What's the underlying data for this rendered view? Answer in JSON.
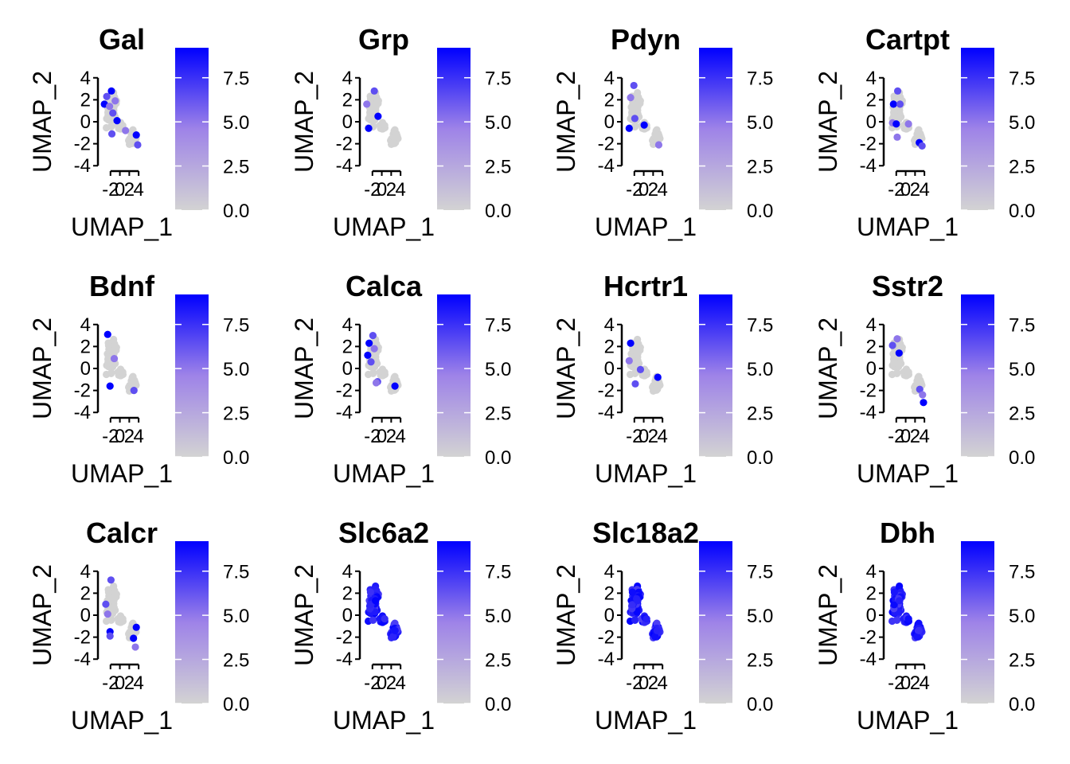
{
  "figure": {
    "xlabel": "UMAP_1",
    "ylabel": "UMAP_2",
    "x_ticks": [
      "-2",
      "0",
      "2",
      "4"
    ],
    "y_ticks": [
      "4",
      "2",
      "0",
      "-2",
      "-4"
    ],
    "colorbar_ticks": [
      "7.5",
      "5.0",
      "2.5",
      "0.0"
    ]
  },
  "chart_data": [
    {
      "type": "scatter",
      "title": "Gal",
      "xlabel": "UMAP_1",
      "ylabel": "UMAP_2",
      "xlim": [
        -4,
        5.5
      ],
      "ylim": [
        -4.2,
        4.2
      ],
      "color_scale": {
        "low": "#d3d3d3",
        "high": "#0000ff",
        "range": [
          0,
          9.2
        ]
      },
      "highlight": [
        [
          -3.3,
          1.6
        ],
        [
          -2.8,
          2.3
        ],
        [
          -2.2,
          1.4
        ],
        [
          -1.8,
          2.8
        ],
        [
          -1.5,
          0.8
        ],
        [
          -1.0,
          1.9
        ],
        [
          -0.6,
          0.1
        ],
        [
          -1.7,
          -1.1
        ],
        [
          1.2,
          -0.8
        ],
        [
          3.5,
          -1.2
        ],
        [
          3.8,
          -2.1
        ]
      ]
    },
    {
      "type": "scatter",
      "title": "Grp",
      "xlabel": "UMAP_1",
      "ylabel": "UMAP_2",
      "xlim": [
        -4,
        5.5
      ],
      "ylim": [
        -4.2,
        4.2
      ],
      "color_scale": {
        "low": "#d3d3d3",
        "high": "#0000ff",
        "range": [
          0,
          9.2
        ]
      },
      "highlight": [
        [
          -2.8,
          -0.6
        ],
        [
          -1.6,
          2.8
        ],
        [
          -3.2,
          1.6
        ],
        [
          -0.8,
          0.5
        ]
      ]
    },
    {
      "type": "scatter",
      "title": "Pdyn",
      "xlabel": "UMAP_1",
      "ylabel": "UMAP_2",
      "xlim": [
        -4,
        5.5
      ],
      "ylim": [
        -4.2,
        4.2
      ],
      "color_scale": {
        "low": "#d3d3d3",
        "high": "#0000ff",
        "range": [
          0,
          9.2
        ]
      },
      "highlight": [
        [
          -3.1,
          -0.6
        ],
        [
          -2.1,
          3.3
        ],
        [
          -2.8,
          2.2
        ],
        [
          0.1,
          -0.3
        ],
        [
          -1.9,
          0.3
        ],
        [
          3.2,
          -2.1
        ]
      ]
    },
    {
      "type": "scatter",
      "title": "Cartpt",
      "xlabel": "UMAP_1",
      "ylabel": "UMAP_2",
      "xlim": [
        -4,
        5.5
      ],
      "ylim": [
        -4.2,
        4.2
      ],
      "color_scale": {
        "low": "#d3d3d3",
        "high": "#0000ff",
        "range": [
          0,
          9.2
        ]
      },
      "highlight": [
        [
          -2.6,
          1.6
        ],
        [
          -1.7,
          2.8
        ],
        [
          -2.8,
          -0.1
        ],
        [
          -2.0,
          -0.2
        ],
        [
          -1.2,
          1.6
        ],
        [
          -1.8,
          -1.4
        ],
        [
          2.9,
          -1.9
        ],
        [
          3.5,
          -2.2
        ],
        [
          0.6,
          -0.2
        ]
      ]
    },
    {
      "type": "scatter",
      "title": "Bdnf",
      "xlabel": "UMAP_1",
      "ylabel": "UMAP_2",
      "xlim": [
        -4,
        5.5
      ],
      "ylim": [
        -4.2,
        4.2
      ],
      "color_scale": {
        "low": "#d3d3d3",
        "high": "#0000ff",
        "range": [
          0,
          9.2
        ]
      },
      "highlight": [
        [
          -2.1,
          -1.6
        ],
        [
          3.0,
          -2.0
        ],
        [
          -1.2,
          0.9
        ],
        [
          -2.6,
          3.1
        ]
      ]
    },
    {
      "type": "scatter",
      "title": "Calca",
      "xlabel": "UMAP_1",
      "ylabel": "UMAP_2",
      "xlim": [
        -4,
        5.5
      ],
      "ylim": [
        -4.2,
        4.2
      ],
      "color_scale": {
        "low": "#d3d3d3",
        "high": "#0000ff",
        "range": [
          0,
          9.2
        ]
      },
      "highlight": [
        [
          -3.0,
          1.2
        ],
        [
          -2.3,
          0.6
        ],
        [
          -1.6,
          1.8
        ],
        [
          -2.7,
          2.3
        ],
        [
          -0.9,
          -1.2
        ],
        [
          -1.2,
          -1.3
        ],
        [
          2.8,
          -1.6
        ],
        [
          -1.9,
          3.0
        ]
      ]
    },
    {
      "type": "scatter",
      "title": "Hcrtr1",
      "xlabel": "UMAP_1",
      "ylabel": "UMAP_2",
      "xlim": [
        -4,
        5.5
      ],
      "ylim": [
        -4.2,
        4.2
      ],
      "color_scale": {
        "low": "#d3d3d3",
        "high": "#0000ff",
        "range": [
          0,
          9.2
        ]
      },
      "highlight": [
        [
          -2.8,
          2.3
        ],
        [
          -0.7,
          -0.1
        ],
        [
          -3.1,
          0.7
        ],
        [
          3.0,
          -0.8
        ],
        [
          -1.8,
          -1.4
        ]
      ]
    },
    {
      "type": "scatter",
      "title": "Sstr2",
      "xlabel": "UMAP_1",
      "ylabel": "UMAP_2",
      "xlim": [
        -4,
        5.5
      ],
      "ylim": [
        -4.2,
        4.2
      ],
      "color_scale": {
        "low": "#d3d3d3",
        "high": "#0000ff",
        "range": [
          0,
          9.2
        ]
      },
      "highlight": [
        [
          3.8,
          -3.1
        ],
        [
          -2.8,
          2.1
        ],
        [
          -1.8,
          2.7
        ],
        [
          -1.4,
          1.4
        ],
        [
          3.0,
          -1.9
        ],
        [
          3.6,
          -2.4
        ]
      ]
    },
    {
      "type": "scatter",
      "title": "Calcr",
      "xlabel": "UMAP_1",
      "ylabel": "UMAP_2",
      "xlim": [
        -4,
        5.5
      ],
      "ylim": [
        -4.2,
        4.2
      ],
      "color_scale": {
        "low": "#d3d3d3",
        "high": "#0000ff",
        "range": [
          0,
          9.2
        ]
      },
      "highlight": [
        [
          -2.1,
          -1.5
        ],
        [
          -2.1,
          -1.9
        ],
        [
          3.3,
          -2.9
        ],
        [
          3.5,
          -1.1
        ],
        [
          -3.0,
          1.0
        ],
        [
          -2.6,
          0.1
        ],
        [
          2.9,
          -2.1
        ],
        [
          -1.9,
          3.2
        ]
      ]
    },
    {
      "type": "scatter",
      "title": "Slc6a2",
      "xlabel": "UMAP_1",
      "ylabel": "UMAP_2",
      "xlim": [
        -4,
        5.5
      ],
      "ylim": [
        -4.2,
        4.2
      ],
      "color_scale": {
        "low": "#d3d3d3",
        "high": "#0000ff",
        "range": [
          0,
          9.2
        ]
      },
      "highlight_all": true
    },
    {
      "type": "scatter",
      "title": "Slc18a2",
      "xlabel": "UMAP_1",
      "ylabel": "UMAP_2",
      "xlim": [
        -4,
        5.5
      ],
      "ylim": [
        -4.2,
        4.2
      ],
      "color_scale": {
        "low": "#d3d3d3",
        "high": "#0000ff",
        "range": [
          0,
          9.2
        ]
      },
      "highlight_all": true
    },
    {
      "type": "scatter",
      "title": "Dbh",
      "xlabel": "UMAP_1",
      "ylabel": "UMAP_2",
      "xlim": [
        -4,
        5.5
      ],
      "ylim": [
        -4.2,
        4.2
      ],
      "color_scale": {
        "low": "#d3d3d3",
        "high": "#0000ff",
        "range": [
          0,
          9.2
        ]
      },
      "highlight_all": true
    }
  ]
}
